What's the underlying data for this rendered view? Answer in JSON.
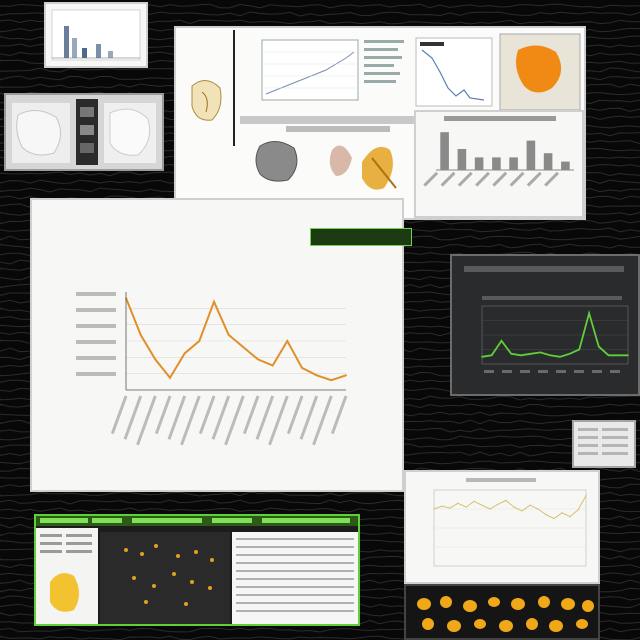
{
  "collage": {
    "background_color": "#080808",
    "accent_orange": "#e0902a",
    "accent_green": "#5fcf3a",
    "accent_yellow": "#f2c230"
  },
  "main_chart": {
    "title_line_1": "",
    "title_line_2": "",
    "title_line_3": "",
    "xlabel": "",
    "ylabel": "",
    "right_label": "",
    "badge": ""
  },
  "chart_data": [
    {
      "type": "line",
      "title": "",
      "xlabel": "",
      "ylabel": "",
      "x": [
        1,
        2,
        3,
        4,
        5,
        6,
        7,
        8,
        9,
        10,
        11,
        12,
        13,
        14,
        15,
        16
      ],
      "series": [
        {
          "values": [
            7.5,
            4.5,
            2.5,
            1.0,
            3.0,
            4.0,
            7.2,
            4.5,
            3.5,
            2.5,
            2.0,
            4.0,
            1.8,
            1.2,
            0.8,
            1.2
          ]
        }
      ],
      "ylim": [
        0,
        8
      ],
      "grid": true,
      "color": "#e0902a"
    },
    {
      "type": "line",
      "title": "",
      "x": [
        1,
        2,
        3,
        4,
        5,
        6,
        7,
        8,
        9,
        10,
        11,
        12,
        13,
        14,
        15,
        16
      ],
      "series": [
        {
          "values": [
            0.5,
            0.6,
            1.6,
            0.7,
            0.6,
            0.7,
            0.8,
            0.6,
            0.5,
            0.7,
            1.0,
            3.5,
            1.2,
            0.6,
            0.6,
            0.6
          ]
        }
      ],
      "ylim": [
        0,
        4
      ],
      "grid": true,
      "color": "#5fcf3a"
    },
    {
      "type": "bar",
      "title": "",
      "categories": [
        "",
        "",
        "",
        "",
        "",
        "",
        "",
        ""
      ],
      "values": [
        9,
        5,
        3,
        3,
        3,
        7,
        4,
        2
      ],
      "ylim": [
        0,
        10
      ],
      "color": "#8a8a8a"
    },
    {
      "type": "line",
      "title": "",
      "x": [
        1,
        2,
        3,
        4,
        5,
        6,
        7,
        8,
        9,
        10,
        11,
        12,
        13,
        14,
        15,
        16,
        17,
        18,
        19,
        20
      ],
      "series": [
        {
          "values": [
            6,
            6.3,
            6.1,
            6.6,
            6.2,
            6.8,
            6.4,
            6.0,
            6.5,
            6.9,
            6.2,
            5.8,
            6.4,
            6.0,
            5.4,
            5.0,
            5.6,
            5.2,
            5.9,
            7.4
          ]
        }
      ],
      "ylim": [
        0,
        8
      ],
      "grid": true,
      "color": "#d8c070"
    }
  ]
}
